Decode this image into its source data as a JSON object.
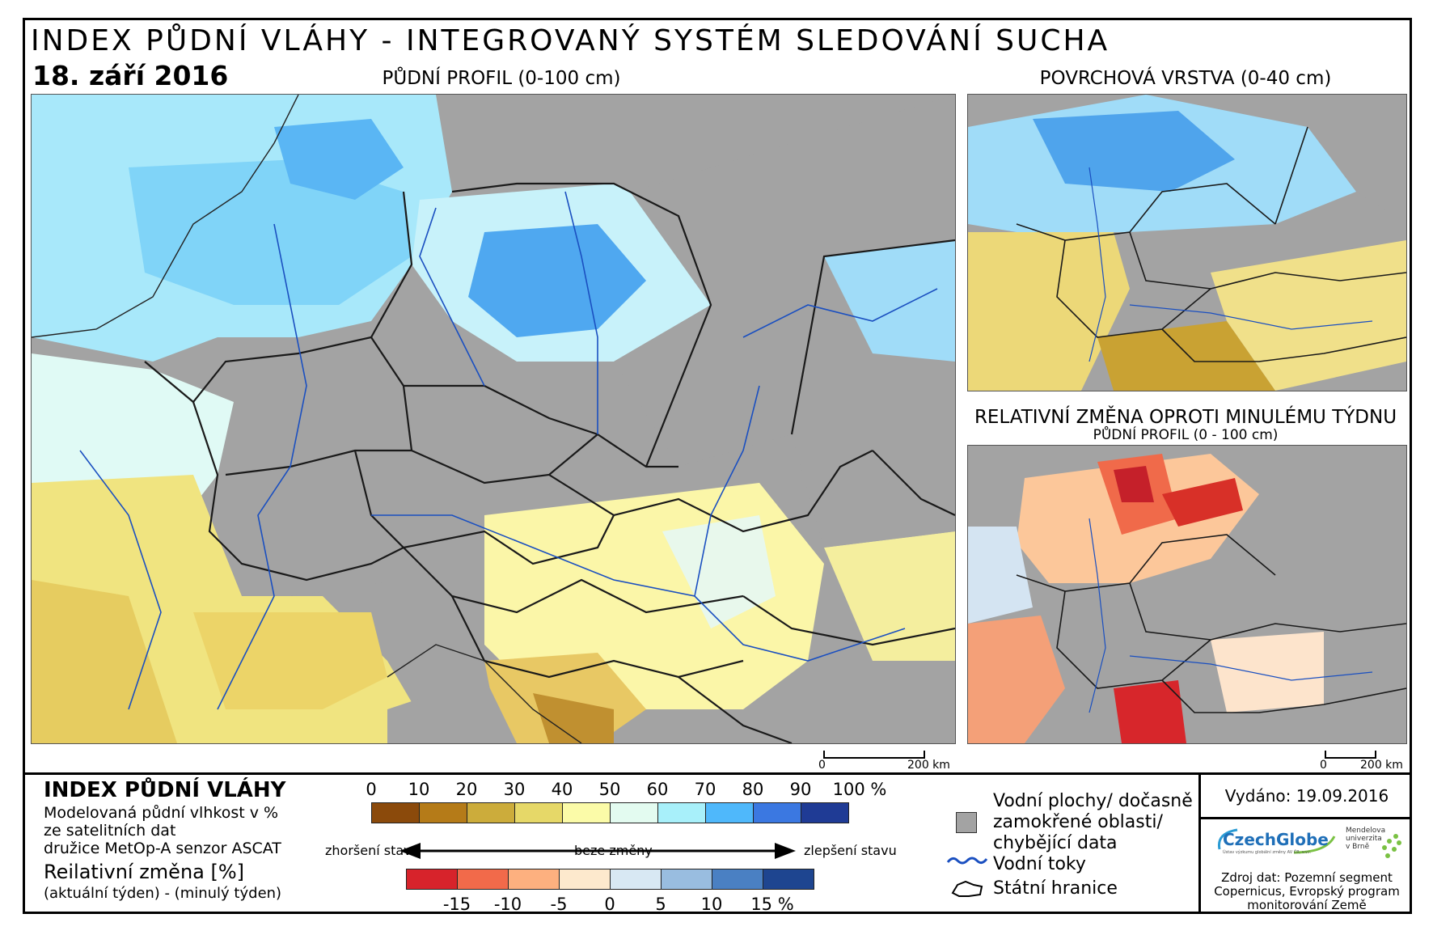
{
  "header": {
    "title": "INDEX PŮDNÍ VLÁHY - INTEGROVANÝ SYSTÉM SLEDOVÁNÍ SUCHA",
    "date": "18. září 2016"
  },
  "maps": {
    "main_title": "PŮDNÍ PROFIL (0-100 cm)",
    "surface_title": "POVRCHOVÁ VRSTVA (0-40 cm)",
    "change_title": "RELATIVNÍ ZMĚNA OPROTI MINULÉMU TÝDNU",
    "change_subtitle": "PŮDNÍ PROFIL (0 - 100 cm)",
    "scalebar_zero": "0",
    "scalebar_label": "200 km"
  },
  "legend": {
    "title": "INDEX PŮDNÍ VLÁHY",
    "desc_line1": "Modelovaná půdní vlhkost v %",
    "desc_line2": "ze satelitních dat",
    "desc_line3": "družice MetOp-A senzor ASCAT",
    "change_title": "Reilativní změna [%]",
    "change_desc": "(aktuální týden) - (minulý týden)",
    "scale_labels": [
      "0",
      "10",
      "20",
      "30",
      "40",
      "50",
      "60",
      "70",
      "80",
      "90",
      "100 %"
    ],
    "scale_colors": [
      "#8b4a0b",
      "#b57b18",
      "#ccac3b",
      "#e6d868",
      "#fbfba8",
      "#e3fbf0",
      "#a8f0fa",
      "#4fb8fb",
      "#3b78e1",
      "#1f3b95"
    ],
    "arrow_left": "zhoršení stavu",
    "arrow_mid": "beze změny",
    "arrow_right": "zlepšení stavu",
    "change_labels": [
      "-15",
      "-10",
      "-5",
      "0",
      "5",
      "10",
      "15 %"
    ],
    "change_colors": [
      "#d7232b",
      "#f26a4a",
      "#fdb07f",
      "#fde9cd",
      "#d8e8f3",
      "#99bde0",
      "#4a80c3",
      "#1e4590"
    ],
    "symbols": {
      "water_line1": "Vodní plochy/ dočasně",
      "water_line2": "zamokřené oblasti/",
      "water_line3": "chybějící data",
      "rivers": "Vodní toky",
      "borders": "Státní hranice"
    }
  },
  "issued": {
    "label": "Vydáno: 19.09.2016"
  },
  "logos": {
    "czechglobe": "CzechGlobe",
    "czechglobe_sub": "Ústav výzkumu globální změny AV ČR, v.v.i.",
    "mendel_line1": "Mendelova",
    "mendel_line2": "univerzita",
    "mendel_line3": "v Brně"
  },
  "source": {
    "line1": "Zdroj dat: Pozemní segment",
    "line2": "Copernicus, Evropský program",
    "line3": "monitorování Země"
  }
}
